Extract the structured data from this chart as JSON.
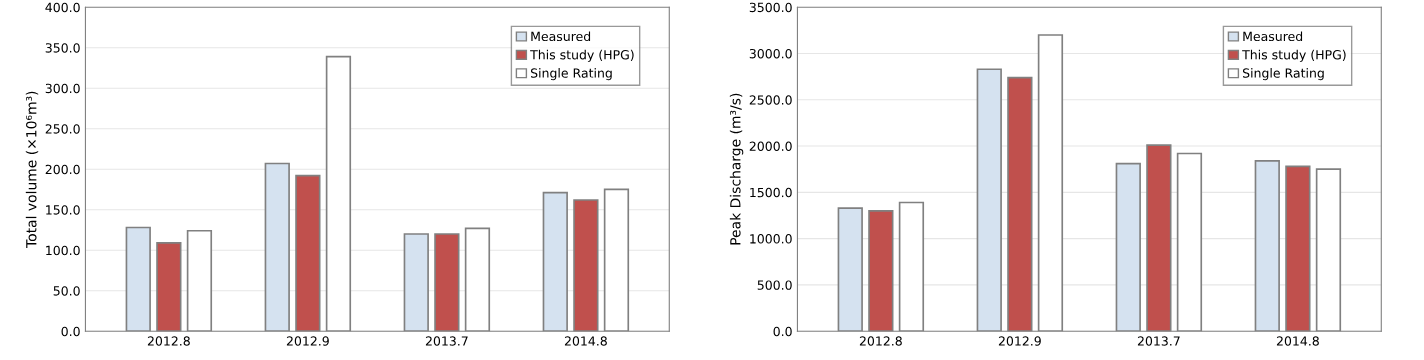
{
  "chart_data": [
    {
      "type": "bar",
      "ylabel": "Total volume (×10⁶m³)",
      "categories": [
        "2012.8",
        "2012.9",
        "2013.7",
        "2014.8"
      ],
      "series": [
        {
          "name": "Measured",
          "color": "#d5e2f0",
          "values": [
            128,
            207,
            120,
            171
          ]
        },
        {
          "name": "This study (HPG)",
          "color": "#c0504d",
          "values": [
            109,
            192,
            120,
            162
          ]
        },
        {
          "name": "Single Rating",
          "color": "#ffffff",
          "values": [
            124,
            339,
            127,
            175
          ]
        }
      ],
      "ylim": [
        0,
        400
      ],
      "yticks": [
        {
          "value": 0,
          "label": "0.0"
        },
        {
          "value": 50,
          "label": "50.0"
        },
        {
          "value": 100,
          "label": "100.0"
        },
        {
          "value": 150,
          "label": "150.0"
        },
        {
          "value": 200,
          "label": "200.0"
        },
        {
          "value": 250,
          "label": "250.0"
        },
        {
          "value": 300,
          "label": "300.0"
        },
        {
          "value": 350,
          "label": "350.0"
        },
        {
          "value": 400,
          "label": "400.0"
        }
      ],
      "grid": "y",
      "legend": "top right"
    },
    {
      "type": "bar",
      "ylabel": "Peak Discharge (m³/s)",
      "categories": [
        "2012.8",
        "2012.9",
        "2013.7",
        "2014.8"
      ],
      "series": [
        {
          "name": "Measured",
          "color": "#d5e2f0",
          "values": [
            1330,
            2830,
            1810,
            1840
          ]
        },
        {
          "name": "This study (HPG)",
          "color": "#c0504d",
          "values": [
            1300,
            2740,
            2010,
            1780
          ]
        },
        {
          "name": "Single Rating",
          "color": "#ffffff",
          "values": [
            1390,
            3200,
            1920,
            1750
          ]
        }
      ],
      "ylim": [
        0,
        3500
      ],
      "yticks": [
        {
          "value": 0,
          "label": "0.0"
        },
        {
          "value": 500,
          "label": "500.0"
        },
        {
          "value": 1000,
          "label": "1000.0"
        },
        {
          "value": 1500,
          "label": "1500.0"
        },
        {
          "value": 2000,
          "label": "2000.0"
        },
        {
          "value": 2500,
          "label": "2500.0"
        },
        {
          "value": 3000,
          "label": "3000.0"
        },
        {
          "value": 3500,
          "label": "3500.0"
        }
      ],
      "grid": "y",
      "legend": "top right"
    }
  ]
}
